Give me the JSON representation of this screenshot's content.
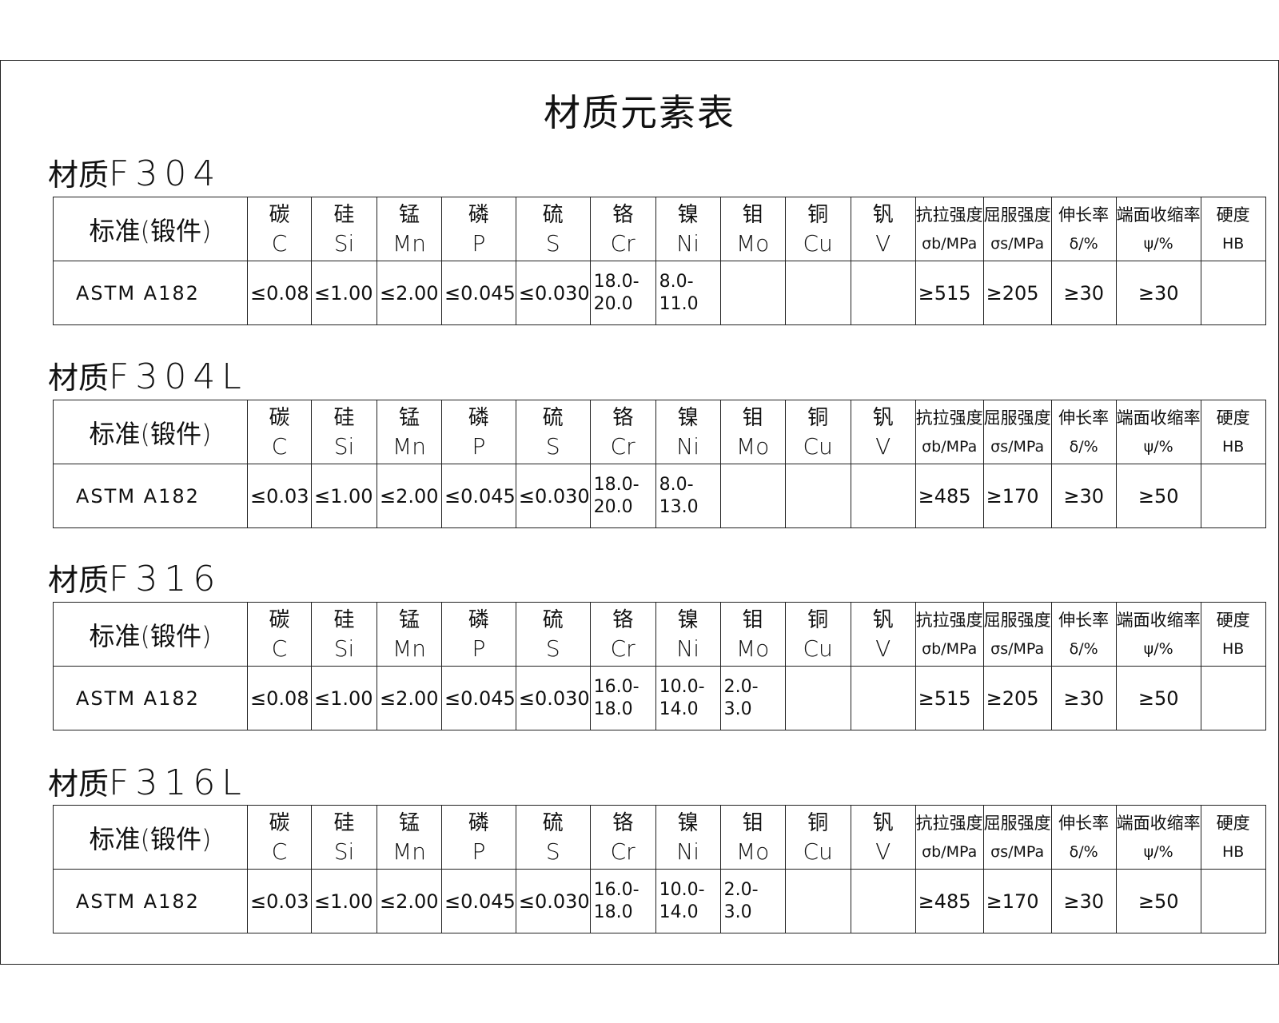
{
  "title": "材质元素表",
  "label_prefix": "材质",
  "header": {
    "standard": "标准(锻件)",
    "elements": [
      {
        "cn": "碳",
        "sym": "C"
      },
      {
        "cn": "硅",
        "sym": "Si"
      },
      {
        "cn": "锰",
        "sym": "Mn"
      },
      {
        "cn": "磷",
        "sym": "P"
      },
      {
        "cn": "硫",
        "sym": "S"
      },
      {
        "cn": "铬",
        "sym": "Cr"
      },
      {
        "cn": "镍",
        "sym": "Ni"
      },
      {
        "cn": "钼",
        "sym": "Mo"
      },
      {
        "cn": "铜",
        "sym": "Cu"
      },
      {
        "cn": "钒",
        "sym": "V"
      }
    ],
    "mechanical": [
      {
        "cn": "抗拉强度",
        "sym": "σb/MPa"
      },
      {
        "cn": "屈服强度",
        "sym": "σs/MPa"
      },
      {
        "cn": "伸长率",
        "sym": "δ/%"
      },
      {
        "cn": "端面收缩率",
        "sym": "ψ/%"
      },
      {
        "cn": "硬度",
        "sym": "HB"
      }
    ]
  },
  "sections": [
    {
      "material": "F304",
      "standard": "ASTM A182",
      "values": [
        "≤0.08",
        "≤1.00",
        "≤2.00",
        "≤0.045",
        "≤0.030",
        "18.0-\n20.0",
        "8.0-\n11.0",
        "",
        "",
        "",
        "≥515",
        "≥205",
        "≥30",
        "≥30",
        ""
      ]
    },
    {
      "material": "F304L",
      "standard": "ASTM A182",
      "values": [
        "≤0.03",
        "≤1.00",
        "≤2.00",
        "≤0.045",
        "≤0.030",
        "18.0-\n20.0",
        "8.0-\n13.0",
        "",
        "",
        "",
        "≥485",
        "≥170",
        "≥30",
        "≥50",
        ""
      ]
    },
    {
      "material": "F316",
      "standard": "ASTM A182",
      "values": [
        "≤0.08",
        "≤1.00",
        "≤2.00",
        "≤0.045",
        "≤0.030",
        "16.0-\n18.0",
        "10.0-\n14.0",
        "2.0-\n3.0",
        "",
        "",
        "≥515",
        "≥205",
        "≥30",
        "≥50",
        ""
      ]
    },
    {
      "material": "F316L",
      "standard": "ASTM A182",
      "values": [
        "≤0.03",
        "≤1.00",
        "≤2.00",
        "≤0.045",
        "≤0.030",
        "16.0-\n18.0",
        "10.0-\n14.0",
        "2.0-\n3.0",
        "",
        "",
        "≥485",
        "≥170",
        "≥30",
        "≥50",
        ""
      ]
    }
  ]
}
